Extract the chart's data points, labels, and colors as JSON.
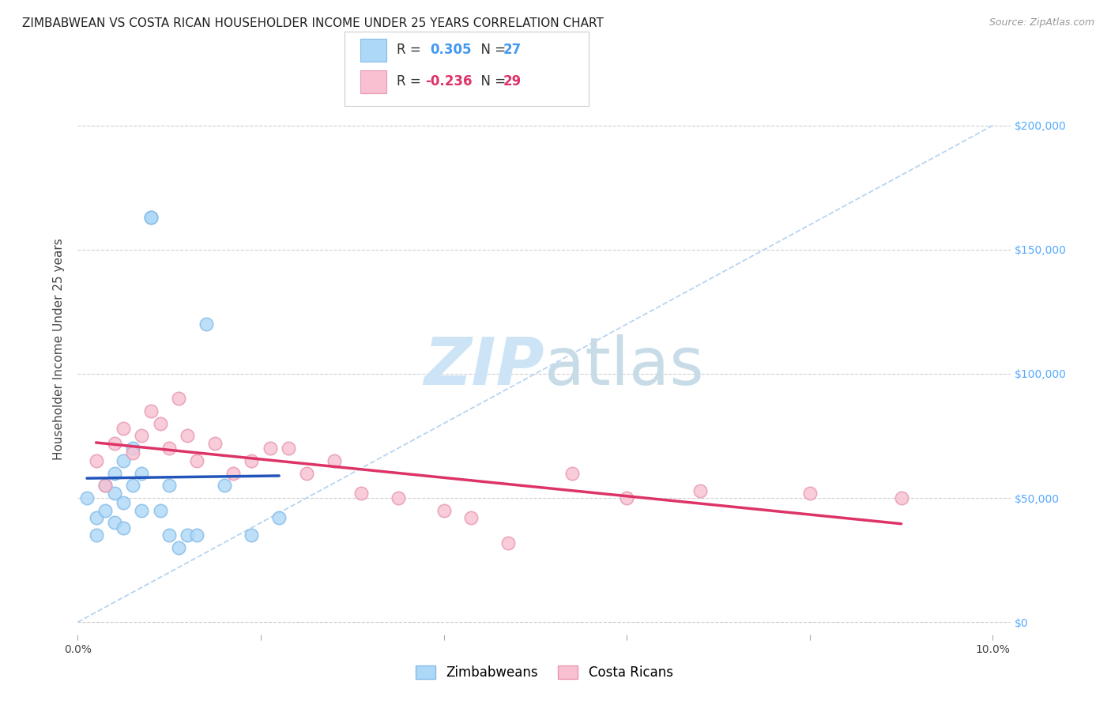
{
  "title": "ZIMBABWEAN VS COSTA RICAN HOUSEHOLDER INCOME UNDER 25 YEARS CORRELATION CHART",
  "source": "Source: ZipAtlas.com",
  "ylabel": "Householder Income Under 25 years",
  "xlim": [
    0.0,
    0.102
  ],
  "ylim": [
    -5000,
    225000
  ],
  "yticks": [
    0,
    50000,
    100000,
    150000,
    200000
  ],
  "xticks": [
    0.0,
    0.02,
    0.04,
    0.06,
    0.08,
    0.1
  ],
  "xtick_labels": [
    "0.0%",
    "",
    "",
    "",
    "",
    "10.0%"
  ],
  "background_color": "#ffffff",
  "grid_color": "#d0d0d0",
  "zim_color": "#add8f7",
  "zim_edge_color": "#85bce8",
  "cr_color": "#f8c0d0",
  "cr_edge_color": "#e898b0",
  "zim_line_color": "#2255bb",
  "cr_line_color": "#dd3366",
  "ref_line_color": "#b8d4f0",
  "watermark_color": "#ddeeff",
  "right_tick_color": "#55aaff",
  "marker_size": 140,
  "title_fontsize": 11,
  "axis_label_fontsize": 11,
  "tick_fontsize": 10,
  "legend_fontsize": 12,
  "zim_x": [
    0.001,
    0.002,
    0.002,
    0.003,
    0.003,
    0.004,
    0.004,
    0.004,
    0.005,
    0.005,
    0.005,
    0.006,
    0.006,
    0.007,
    0.007,
    0.008,
    0.008,
    0.009,
    0.01,
    0.01,
    0.011,
    0.012,
    0.013,
    0.014,
    0.016,
    0.019,
    0.022
  ],
  "zim_y": [
    50000,
    42000,
    35000,
    55000,
    45000,
    60000,
    52000,
    40000,
    65000,
    48000,
    38000,
    70000,
    55000,
    60000,
    45000,
    163000,
    163000,
    45000,
    55000,
    35000,
    30000,
    35000,
    35000,
    120000,
    55000,
    35000,
    42000
  ],
  "cr_x": [
    0.002,
    0.003,
    0.004,
    0.005,
    0.006,
    0.007,
    0.008,
    0.009,
    0.01,
    0.011,
    0.012,
    0.013,
    0.015,
    0.017,
    0.019,
    0.021,
    0.023,
    0.025,
    0.028,
    0.031,
    0.035,
    0.04,
    0.043,
    0.047,
    0.054,
    0.06,
    0.068,
    0.08,
    0.09
  ],
  "cr_y": [
    65000,
    55000,
    72000,
    78000,
    68000,
    75000,
    85000,
    80000,
    70000,
    90000,
    75000,
    65000,
    72000,
    60000,
    65000,
    70000,
    70000,
    60000,
    65000,
    52000,
    50000,
    45000,
    42000,
    32000,
    60000,
    50000,
    53000,
    52000,
    50000
  ]
}
